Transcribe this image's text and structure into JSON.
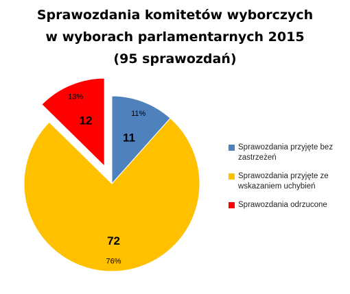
{
  "chart_data": {
    "type": "pie",
    "title": [
      "Sprawozdania komitetów wyborczych",
      "w wyborach parlamentarnych 2015",
      "(95 sprawozdań)"
    ],
    "categories": [
      "Sprawozdania przyjęte bez zastrzeżeń",
      "Sprawozdania przyjęte ze wskazaniem uchybień",
      "Sprawozdania odrzucone"
    ],
    "values": [
      11,
      72,
      12
    ],
    "percent_labels": [
      "11%",
      "76%",
      "13%"
    ],
    "colors": [
      "#4f81bd",
      "#ffc000",
      "#ff0000"
    ],
    "exploded": [
      false,
      false,
      true
    ],
    "legend": "right"
  }
}
